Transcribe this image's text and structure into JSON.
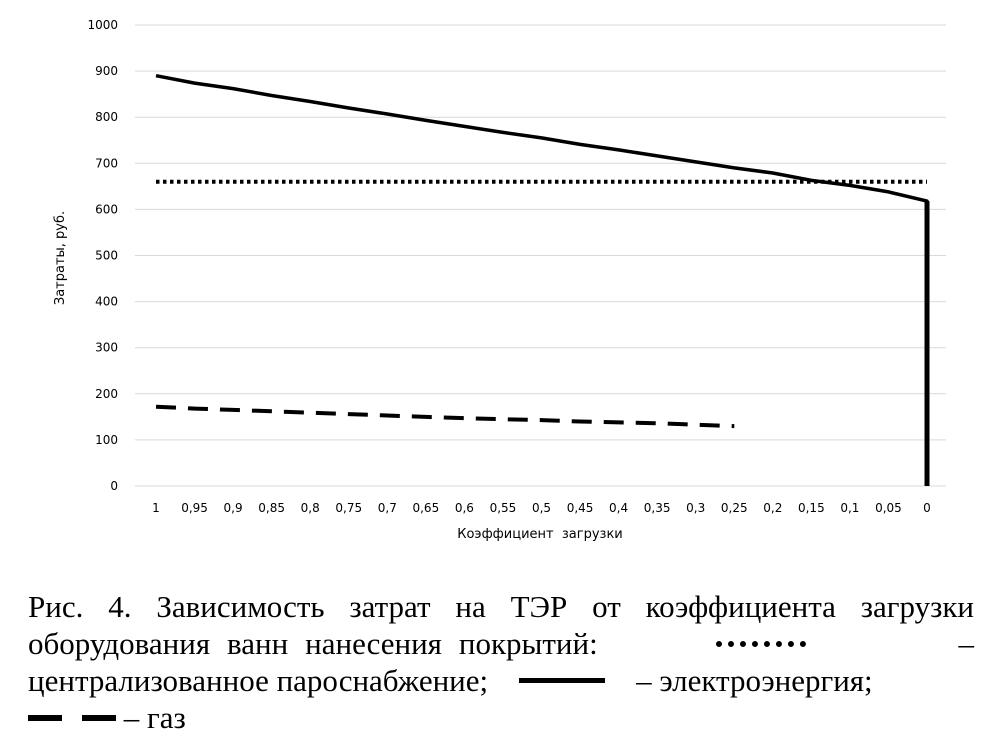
{
  "chart_data": {
    "type": "line",
    "title": "",
    "xlabel": "Коэффициент  загрузки",
    "ylabel": "Затраты, руб.",
    "ylim": [
      0,
      1000
    ],
    "y_ticks": [
      "0",
      "100",
      "200",
      "300",
      "400",
      "500",
      "600",
      "700",
      "800",
      "900",
      "1000"
    ],
    "categories": [
      "1",
      "0,95",
      "0,9",
      "0,85",
      "0,8",
      "0,75",
      "0,7",
      "0,65",
      "0,6",
      "0,55",
      "0,5",
      "0,45",
      "0,4",
      "0,35",
      "0,3",
      "0,25",
      "0,2",
      "0,15",
      "0,1",
      "0,05",
      "0"
    ],
    "grid": true,
    "series": [
      {
        "key": "steam",
        "style": "dotted",
        "values": [
          660,
          660,
          660,
          660,
          660,
          660,
          660,
          660,
          660,
          660,
          660,
          660,
          660,
          660,
          660,
          660,
          660,
          660,
          660,
          660,
          660
        ]
      },
      {
        "key": "electricity",
        "style": "solid",
        "values": [
          890,
          874,
          862,
          847,
          834,
          820,
          807,
          793,
          780,
          767,
          755,
          741,
          729,
          716,
          703,
          690,
          679,
          663,
          652,
          638,
          618
        ],
        "final_drop_to": 0
      },
      {
        "key": "gas",
        "style": "dashed",
        "values": [
          172,
          168,
          165,
          162,
          159,
          156,
          153,
          150,
          147,
          145,
          143,
          140,
          138,
          136,
          133,
          130,
          null,
          null,
          null,
          null,
          null
        ]
      }
    ]
  },
  "caption": {
    "part1": "Рис. 4. Зависимость затрат на ТЭР от коэффициента загрузки оборудования ванн нанесения покрытий:",
    "dash1": " –",
    "part2": " централизованное пароснабжение;",
    "part3": " – электроэнергия;",
    "part4": " – газ"
  }
}
